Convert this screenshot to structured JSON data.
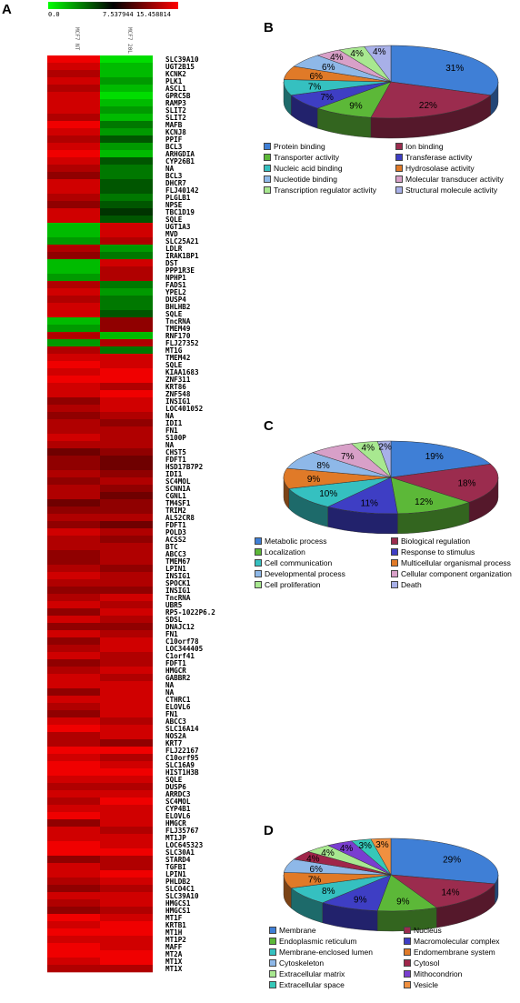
{
  "heatmap": {
    "panel_label": "A",
    "scale": {
      "min_label": "0.0",
      "mid_label": "7.537944",
      "max_label": "15.458814"
    },
    "columns": [
      "MCF7 NT",
      "MCF7 20L"
    ],
    "genes": [
      "SLC39A10",
      "UGT2B15",
      "KCNK2",
      "PLK1",
      "ASCL1",
      "GPRC5B",
      "RAMP3",
      "SLIT2",
      "SLIT2",
      "MAFB",
      "KCNJ8",
      "PPIF",
      "BCL3",
      "ARHGDIA",
      "CYP26B1",
      "NA",
      "BCL3",
      "DHCR7",
      "FLJ40142",
      "PLGLB1",
      "NPSE",
      "TBC1D19",
      "SQLE",
      "UGT1A3",
      "MVD",
      "SLC25A21",
      "LDLR",
      "IRAK1BP1",
      "DST",
      "PPP1R3E",
      "NPHP1",
      "FADS1",
      "YPEL2",
      "DUSP4",
      "BHLHB2",
      "SQLE",
      "TncRNA",
      "TMEM49",
      "RNF170",
      "FLJ27352",
      "MT1G",
      "TMEM42",
      "SQLE",
      "KIAA1683",
      "ZNF311",
      "KRT86",
      "ZNF548",
      "INSIG1",
      "LOC401052",
      "NA",
      "IDI1",
      "FN1",
      "S100P",
      "NA",
      "CHST5",
      "FDFT1",
      "HSD17B7P2",
      "IDI1",
      "SC4MOL",
      "SCNN1A",
      "CGNL1",
      "TM4SF1",
      "TRIM2",
      "ALS2CR8",
      "FDFT1",
      "POLD3",
      "ACSS2",
      "BTC",
      "ABCC3",
      "TMEM67",
      "LPIN1",
      "INSIG1",
      "SPOCK1",
      "INSIG1",
      "TncRNA",
      "UBR5",
      "RP5-1022P6.2",
      "SDSL",
      "DNAJC12",
      "FN1",
      "C10orf78",
      "LOC344405",
      "C1orf41",
      "FDFT1",
      "HMGCR",
      "GABBR2",
      "NA",
      "NA",
      "CTHRC1",
      "ELOVL6",
      "FN1",
      "ABCC3",
      "SLC16A14",
      "NOS2A",
      "KRT7",
      "FLJ22167",
      "C10orf95",
      "SLC16A9",
      "HIST1H3B",
      "SQLE",
      "DUSP6",
      "ARRDC3",
      "SC4MOL",
      "CYP4B1",
      "ELOVL6",
      "HMGCR",
      "FLJ35767",
      "MT1JP",
      "LOC645323",
      "SLC30A1",
      "STARD4",
      "TGFBI",
      "LPIN1",
      "PHLDB2",
      "SLCO4C1",
      "SLC39A10",
      "HMGCS1",
      "HMGCS1",
      "MT1F",
      "KRTB1",
      "MT1H",
      "MT1P2",
      "MAFF",
      "MT2A",
      "MT1X",
      "MT1X"
    ],
    "values": [
      [
        15,
        1
      ],
      [
        14,
        2
      ],
      [
        13,
        2
      ],
      [
        14,
        3
      ],
      [
        13,
        2
      ],
      [
        14,
        1
      ],
      [
        14,
        2
      ],
      [
        14,
        3
      ],
      [
        13,
        2
      ],
      [
        15,
        4
      ],
      [
        14,
        3
      ],
      [
        13,
        5
      ],
      [
        14,
        3
      ],
      [
        15,
        2
      ],
      [
        14,
        5
      ],
      [
        13,
        4
      ],
      [
        12,
        4
      ],
      [
        14,
        5
      ],
      [
        14,
        5
      ],
      [
        13,
        4
      ],
      [
        12,
        5
      ],
      [
        14,
        6
      ],
      [
        14,
        5
      ],
      [
        2,
        14
      ],
      [
        2,
        14
      ],
      [
        3,
        13
      ],
      [
        13,
        3
      ],
      [
        12,
        4
      ],
      [
        2,
        14
      ],
      [
        2,
        13
      ],
      [
        3,
        13
      ],
      [
        13,
        4
      ],
      [
        14,
        3
      ],
      [
        13,
        4
      ],
      [
        14,
        4
      ],
      [
        14,
        5
      ],
      [
        2,
        12
      ],
      [
        3,
        12
      ],
      [
        13,
        2
      ],
      [
        3,
        13
      ],
      [
        13,
        4
      ],
      [
        14,
        14
      ],
      [
        15,
        14
      ],
      [
        14,
        15
      ],
      [
        15,
        15
      ],
      [
        14,
        13
      ],
      [
        14,
        15
      ],
      [
        12,
        14
      ],
      [
        13,
        14
      ],
      [
        12,
        13
      ],
      [
        13,
        12
      ],
      [
        13,
        13
      ],
      [
        14,
        13
      ],
      [
        13,
        13
      ],
      [
        11,
        12
      ],
      [
        12,
        11
      ],
      [
        12,
        11
      ],
      [
        13,
        12
      ],
      [
        12,
        13
      ],
      [
        13,
        12
      ],
      [
        13,
        11
      ],
      [
        11,
        12
      ],
      [
        12,
        12
      ],
      [
        13,
        13
      ],
      [
        12,
        11
      ],
      [
        14,
        13
      ],
      [
        13,
        12
      ],
      [
        13,
        13
      ],
      [
        12,
        13
      ],
      [
        12,
        13
      ],
      [
        13,
        12
      ],
      [
        14,
        13
      ],
      [
        13,
        13
      ],
      [
        12,
        12
      ],
      [
        13,
        14
      ],
      [
        14,
        13
      ],
      [
        12,
        14
      ],
      [
        14,
        13
      ],
      [
        12,
        12
      ],
      [
        14,
        13
      ],
      [
        12,
        14
      ],
      [
        13,
        14
      ],
      [
        14,
        13
      ],
      [
        12,
        13
      ],
      [
        13,
        14
      ],
      [
        14,
        13
      ],
      [
        14,
        14
      ],
      [
        12,
        14
      ],
      [
        14,
        14
      ],
      [
        13,
        14
      ],
      [
        12,
        14
      ],
      [
        14,
        13
      ],
      [
        15,
        14
      ],
      [
        13,
        14
      ],
      [
        13,
        12
      ],
      [
        15,
        15
      ],
      [
        14,
        13
      ],
      [
        15,
        14
      ],
      [
        15,
        15
      ],
      [
        14,
        14
      ],
      [
        13,
        13
      ],
      [
        14,
        14
      ],
      [
        13,
        15
      ],
      [
        14,
        14
      ],
      [
        15,
        14
      ],
      [
        12,
        14
      ],
      [
        14,
        13
      ],
      [
        14,
        14
      ],
      [
        15,
        14
      ],
      [
        15,
        15
      ],
      [
        12,
        13
      ],
      [
        14,
        13
      ],
      [
        14,
        15
      ],
      [
        13,
        14
      ],
      [
        12,
        13
      ],
      [
        14,
        14
      ],
      [
        13,
        14
      ],
      [
        12,
        13
      ],
      [
        15,
        14
      ],
      [
        14,
        15
      ],
      [
        15,
        15
      ],
      [
        14,
        14
      ],
      [
        15,
        14
      ],
      [
        15,
        15
      ],
      [
        14,
        15
      ],
      [
        13,
        13
      ]
    ]
  },
  "pies": [
    {
      "panel_label": "B",
      "chart_data": {
        "type": "pie",
        "slices": [
          {
            "label": "Protein binding",
            "value": 31,
            "color": "#3f7fd6"
          },
          {
            "label": "Ion binding",
            "value": 22,
            "color": "#9b2c4e"
          },
          {
            "label": "Transporter activity",
            "value": 9,
            "color": "#5cb838"
          },
          {
            "label": "Transferase activity",
            "value": 7,
            "color": "#3e3ec4"
          },
          {
            "label": "Nucleic acid binding",
            "value": 7,
            "color": "#35c0c0"
          },
          {
            "label": "Hydrosolase activity",
            "value": 6,
            "color": "#e07a28"
          },
          {
            "label": "Nucleotide binding",
            "value": 6,
            "color": "#8eb8e8"
          },
          {
            "label": "Molecular transducer activity",
            "value": 4,
            "color": "#d8a0c8"
          },
          {
            "label": "Transcription regulator activity",
            "value": 4,
            "color": "#a8e890"
          },
          {
            "label": "Structural molecule activity",
            "value": 4,
            "color": "#a8b0e8"
          }
        ],
        "slice_labels": [
          "31%",
          "22%",
          "9%",
          "7%",
          "7%",
          "6%",
          "6%",
          "4%",
          "4%",
          "4%"
        ]
      }
    },
    {
      "panel_label": "C",
      "chart_data": {
        "type": "pie",
        "slices": [
          {
            "label": "Metabolic process",
            "value": 19,
            "color": "#3f7fd6"
          },
          {
            "label": "Biological regulation",
            "value": 18,
            "color": "#9b2c4e"
          },
          {
            "label": "Localization",
            "value": 12,
            "color": "#5cb838"
          },
          {
            "label": "Response to stimulus",
            "value": 11,
            "color": "#3e3ec4"
          },
          {
            "label": "Cell communication",
            "value": 10,
            "color": "#35c0c0"
          },
          {
            "label": "Multicellular organismal process",
            "value": 9,
            "color": "#e07a28"
          },
          {
            "label": "Developmental process",
            "value": 8,
            "color": "#8eb8e8"
          },
          {
            "label": "Cellular component organization",
            "value": 7,
            "color": "#d8a0c8"
          },
          {
            "label": "Cell proliferation",
            "value": 4,
            "color": "#a8e890"
          },
          {
            "label": "Death",
            "value": 2,
            "color": "#a8b0e8"
          }
        ],
        "slice_labels": [
          "19%",
          "18%",
          "12%",
          "11%",
          "10%",
          "9%",
          "8%",
          "7%",
          "4%",
          "2%"
        ]
      }
    },
    {
      "panel_label": "D",
      "chart_data": {
        "type": "pie",
        "slices": [
          {
            "label": "Membrane",
            "value": 29,
            "color": "#3f7fd6"
          },
          {
            "label": "Nucleus",
            "value": 14,
            "color": "#9b2c4e"
          },
          {
            "label": "Endoplasmic reticulum",
            "value": 9,
            "color": "#5cb838"
          },
          {
            "label": "Macromolecular complex",
            "value": 9,
            "color": "#3e3ec4"
          },
          {
            "label": "Membrane-enclosed lumen",
            "value": 8,
            "color": "#35c0c0"
          },
          {
            "label": "Endomembrane system",
            "value": 7,
            "color": "#e07a28"
          },
          {
            "label": "Cytoskeleton",
            "value": 6,
            "color": "#8eb8e8"
          },
          {
            "label": "Cytosol",
            "value": 4,
            "color": "#a0264a"
          },
          {
            "label": "Extracellular matrix",
            "value": 4,
            "color": "#a8e890"
          },
          {
            "label": "Mithocondrion",
            "value": 4,
            "color": "#7a3ed0"
          },
          {
            "label": "Extracellular space",
            "value": 3,
            "color": "#35c8b8"
          },
          {
            "label": "Vesicle",
            "value": 3,
            "color": "#f09040"
          }
        ],
        "slice_labels": [
          "29%",
          "14%",
          "9%",
          "9%",
          "8%",
          "7%",
          "6%",
          "4%",
          "4%",
          "4%",
          "3%",
          "3%"
        ]
      }
    }
  ]
}
